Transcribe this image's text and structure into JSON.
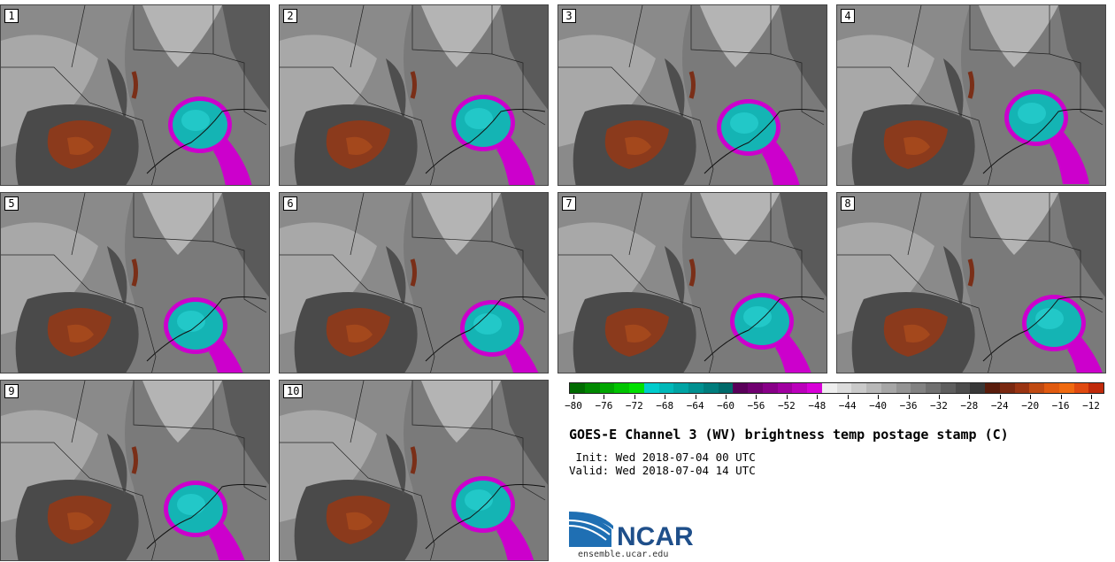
{
  "panels": [
    {
      "label": "1"
    },
    {
      "label": "2"
    },
    {
      "label": "3"
    },
    {
      "label": "4"
    },
    {
      "label": "5"
    },
    {
      "label": "6"
    },
    {
      "label": "7"
    },
    {
      "label": "8"
    },
    {
      "label": "9"
    },
    {
      "label": "10"
    }
  ],
  "colorbar": {
    "colors": [
      "#006b00",
      "#008800",
      "#00a600",
      "#00c400",
      "#00e000",
      "#00cccc",
      "#00b8b8",
      "#00a4a4",
      "#009090",
      "#007d7d",
      "#006a6a",
      "#5a005a",
      "#700070",
      "#880088",
      "#a000a0",
      "#bb00bb",
      "#d800d8",
      "#eeeeee",
      "#dcdcdc",
      "#cacaca",
      "#b8b8b8",
      "#a6a6a6",
      "#949494",
      "#828282",
      "#707070",
      "#5e5e5e",
      "#4c4c4c",
      "#383838",
      "#5a1c0c",
      "#7a2810",
      "#9a3412",
      "#c04a12",
      "#e05a10",
      "#f06a10",
      "#e04a10",
      "#c02a0a"
    ],
    "ticks": [
      "-80",
      "-76",
      "-72",
      "-68",
      "-64",
      "-60",
      "-56",
      "-52",
      "-48",
      "-44",
      "-40",
      "-36",
      "-32",
      "-28",
      "-24",
      "-20",
      "-16",
      "-12"
    ]
  },
  "title": "GOES-E Channel 3 (WV) brightness temp postage stamp (C)",
  "init": " Init: Wed 2018-07-04 00 UTC",
  "valid": "Valid: Wed 2018-07-04 14 UTC",
  "logo": {
    "text": "NCAR",
    "url": "ensemble.ucar.edu"
  }
}
